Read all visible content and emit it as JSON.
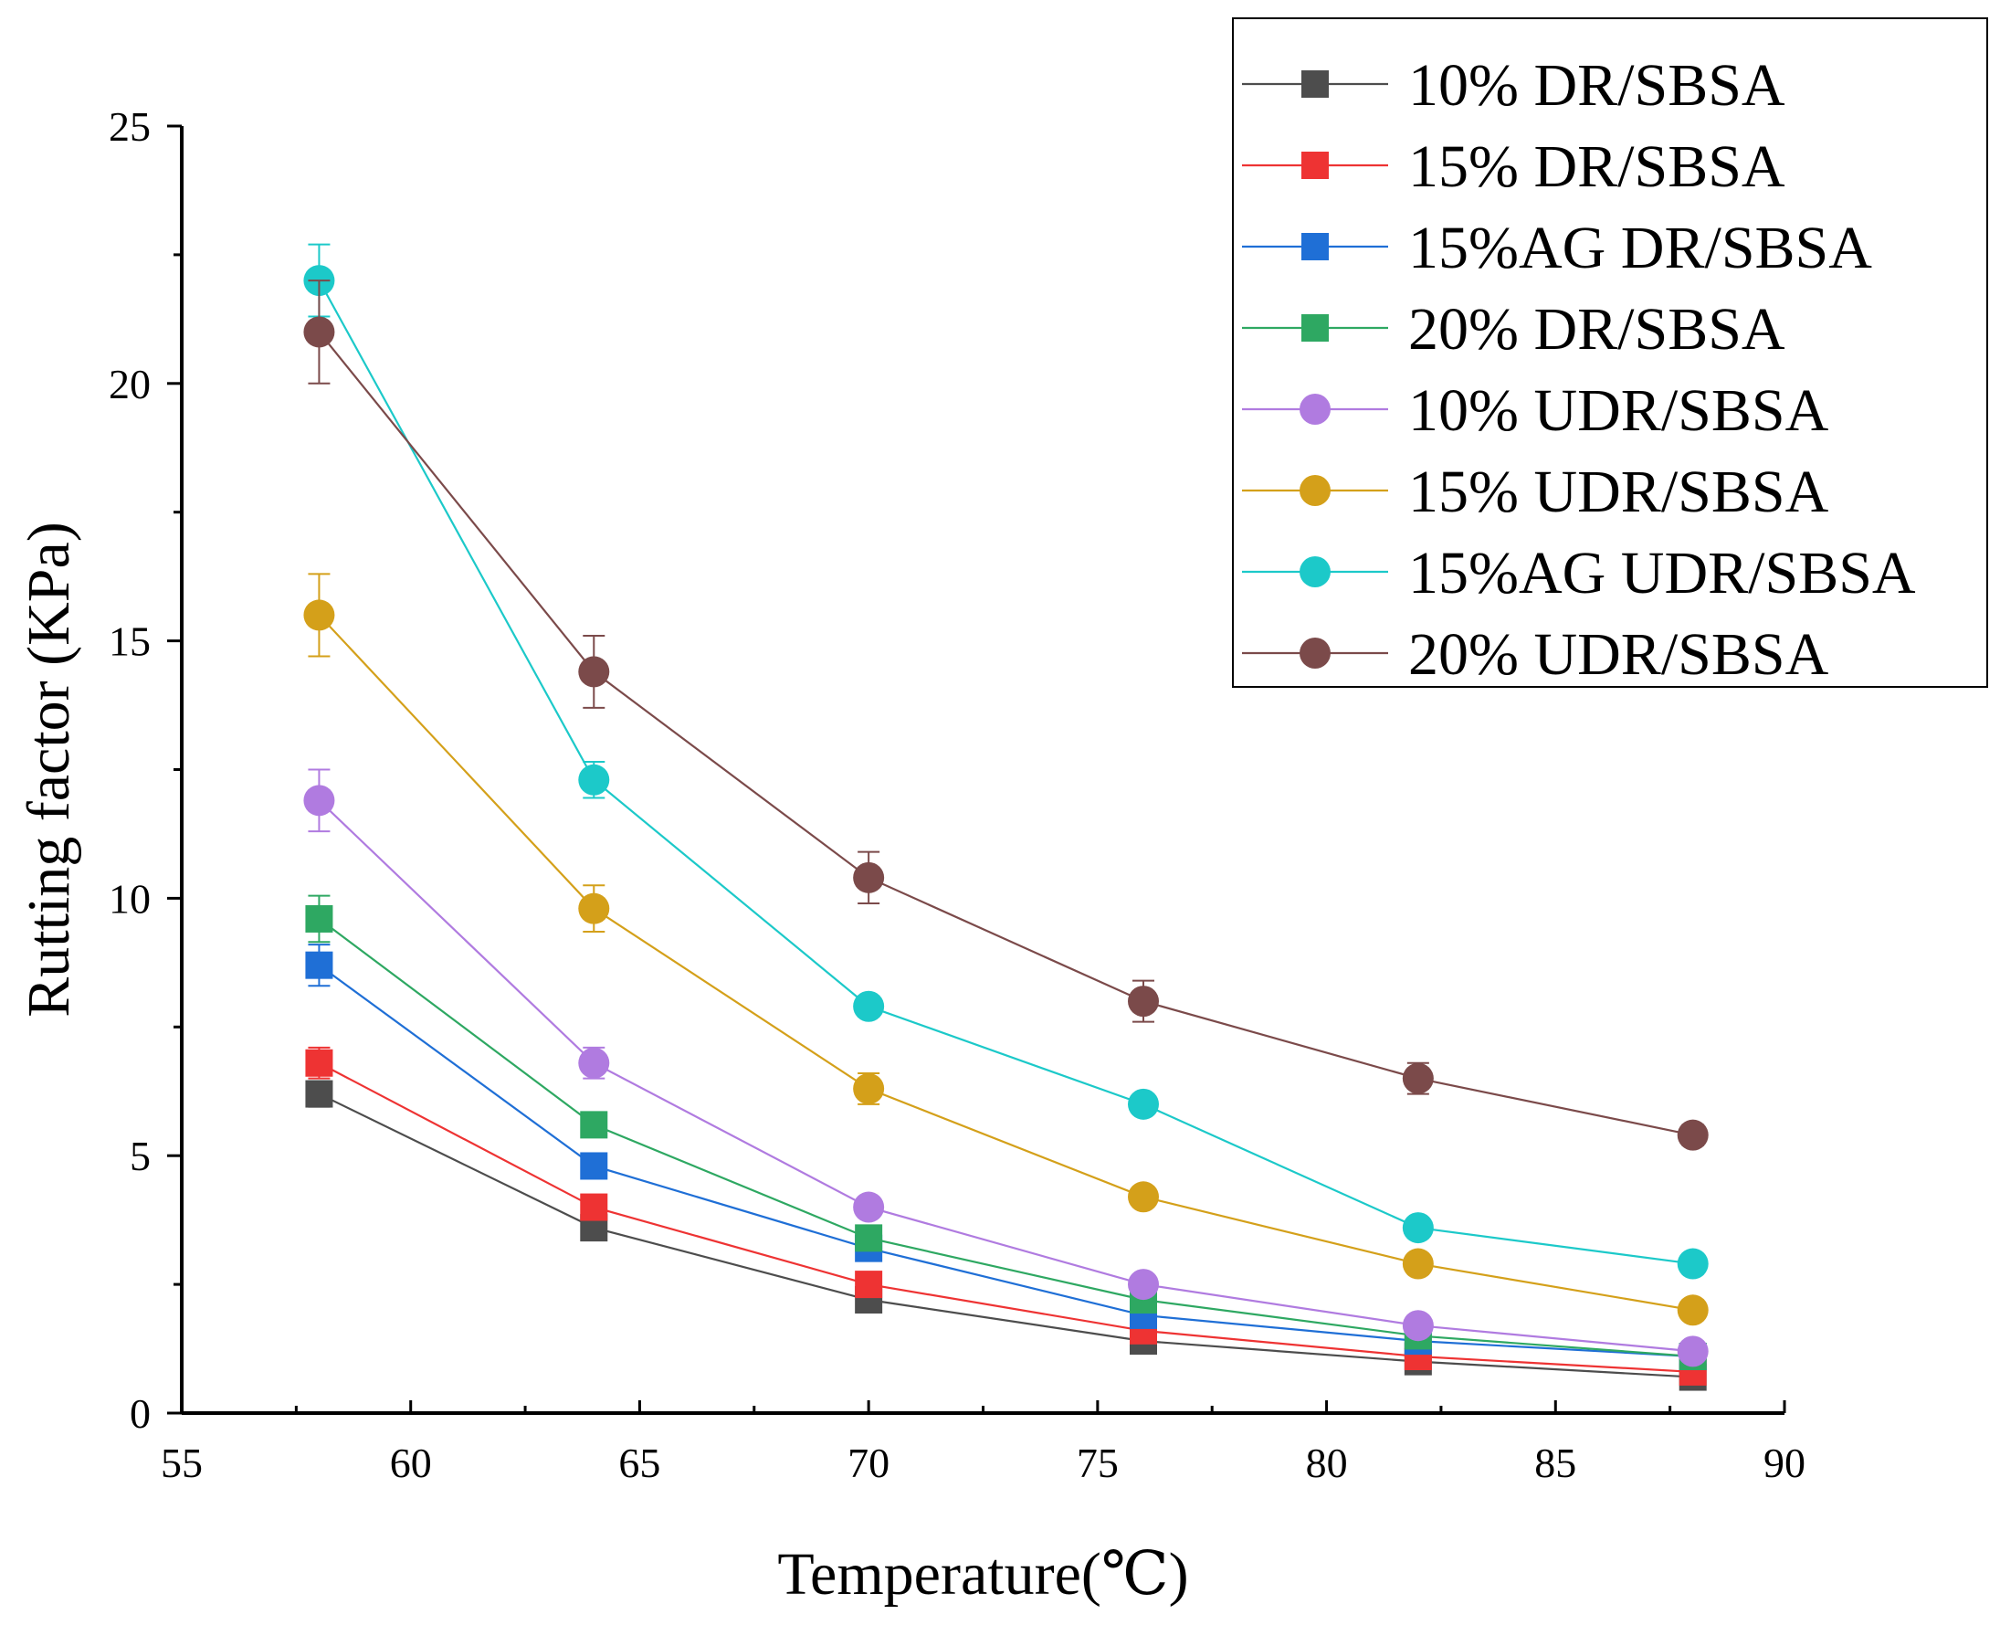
{
  "chart_data": {
    "type": "line",
    "title": "",
    "xlabel": "Temperature(℃)",
    "ylabel": "Rutting factor (KPa)",
    "xlim": [
      55,
      90
    ],
    "ylim": [
      0,
      25
    ],
    "x_ticks": [
      55,
      60,
      65,
      70,
      75,
      80,
      85,
      90
    ],
    "y_ticks": [
      0,
      5,
      10,
      15,
      20,
      25
    ],
    "grid": false,
    "legend_position": "top-right",
    "x": [
      58,
      64,
      70,
      76,
      82,
      88
    ],
    "series": [
      {
        "name": "10% DR/SBSA",
        "color": "#4d4d4d",
        "marker": "square",
        "values": [
          6.2,
          3.6,
          2.2,
          1.4,
          1.0,
          0.7
        ],
        "errors": [
          0.25,
          0.15,
          0.1,
          0.08,
          0.05,
          0.04
        ]
      },
      {
        "name": "15% DR/SBSA",
        "color": "#ee3333",
        "marker": "square",
        "values": [
          6.8,
          4.0,
          2.5,
          1.6,
          1.1,
          0.8
        ],
        "errors": [
          0.3,
          0.15,
          0.1,
          0.08,
          0.05,
          0.04
        ]
      },
      {
        "name": "15%AG DR/SBSA",
        "color": "#1f6fd6",
        "marker": "square",
        "values": [
          8.7,
          4.8,
          3.2,
          1.9,
          1.4,
          1.1
        ],
        "errors": [
          0.4,
          0.2,
          0.15,
          0.1,
          0.07,
          0.05
        ]
      },
      {
        "name": "20% DR/SBSA",
        "color": "#2ea862",
        "marker": "square",
        "values": [
          9.6,
          5.6,
          3.4,
          2.2,
          1.5,
          1.1
        ],
        "errors": [
          0.45,
          0.2,
          0.15,
          0.1,
          0.07,
          0.05
        ]
      },
      {
        "name": "10% UDR/SBSA",
        "color": "#b07be0",
        "marker": "circle",
        "values": [
          11.9,
          6.8,
          4.0,
          2.5,
          1.7,
          1.2
        ],
        "errors": [
          0.6,
          0.3,
          0.15,
          0.1,
          0.08,
          0.05
        ]
      },
      {
        "name": "15% UDR/SBSA",
        "color": "#d4a01a",
        "marker": "circle",
        "values": [
          15.5,
          9.8,
          6.3,
          4.2,
          2.9,
          2.0
        ],
        "errors": [
          0.8,
          0.45,
          0.3,
          0.15,
          0.1,
          0.08
        ]
      },
      {
        "name": "15%AG UDR/SBSA",
        "color": "#1cc9c9",
        "marker": "circle",
        "values": [
          22.0,
          12.3,
          7.9,
          6.0,
          3.6,
          2.9
        ],
        "errors": [
          0.7,
          0.35,
          0.2,
          0.15,
          0.1,
          0.08
        ]
      },
      {
        "name": "20% UDR/SBSA",
        "color": "#7b4a4a",
        "marker": "circle",
        "values": [
          21.0,
          14.4,
          10.4,
          8.0,
          6.5,
          5.4
        ],
        "errors": [
          1.0,
          0.7,
          0.5,
          0.4,
          0.3,
          0.2
        ]
      }
    ]
  }
}
